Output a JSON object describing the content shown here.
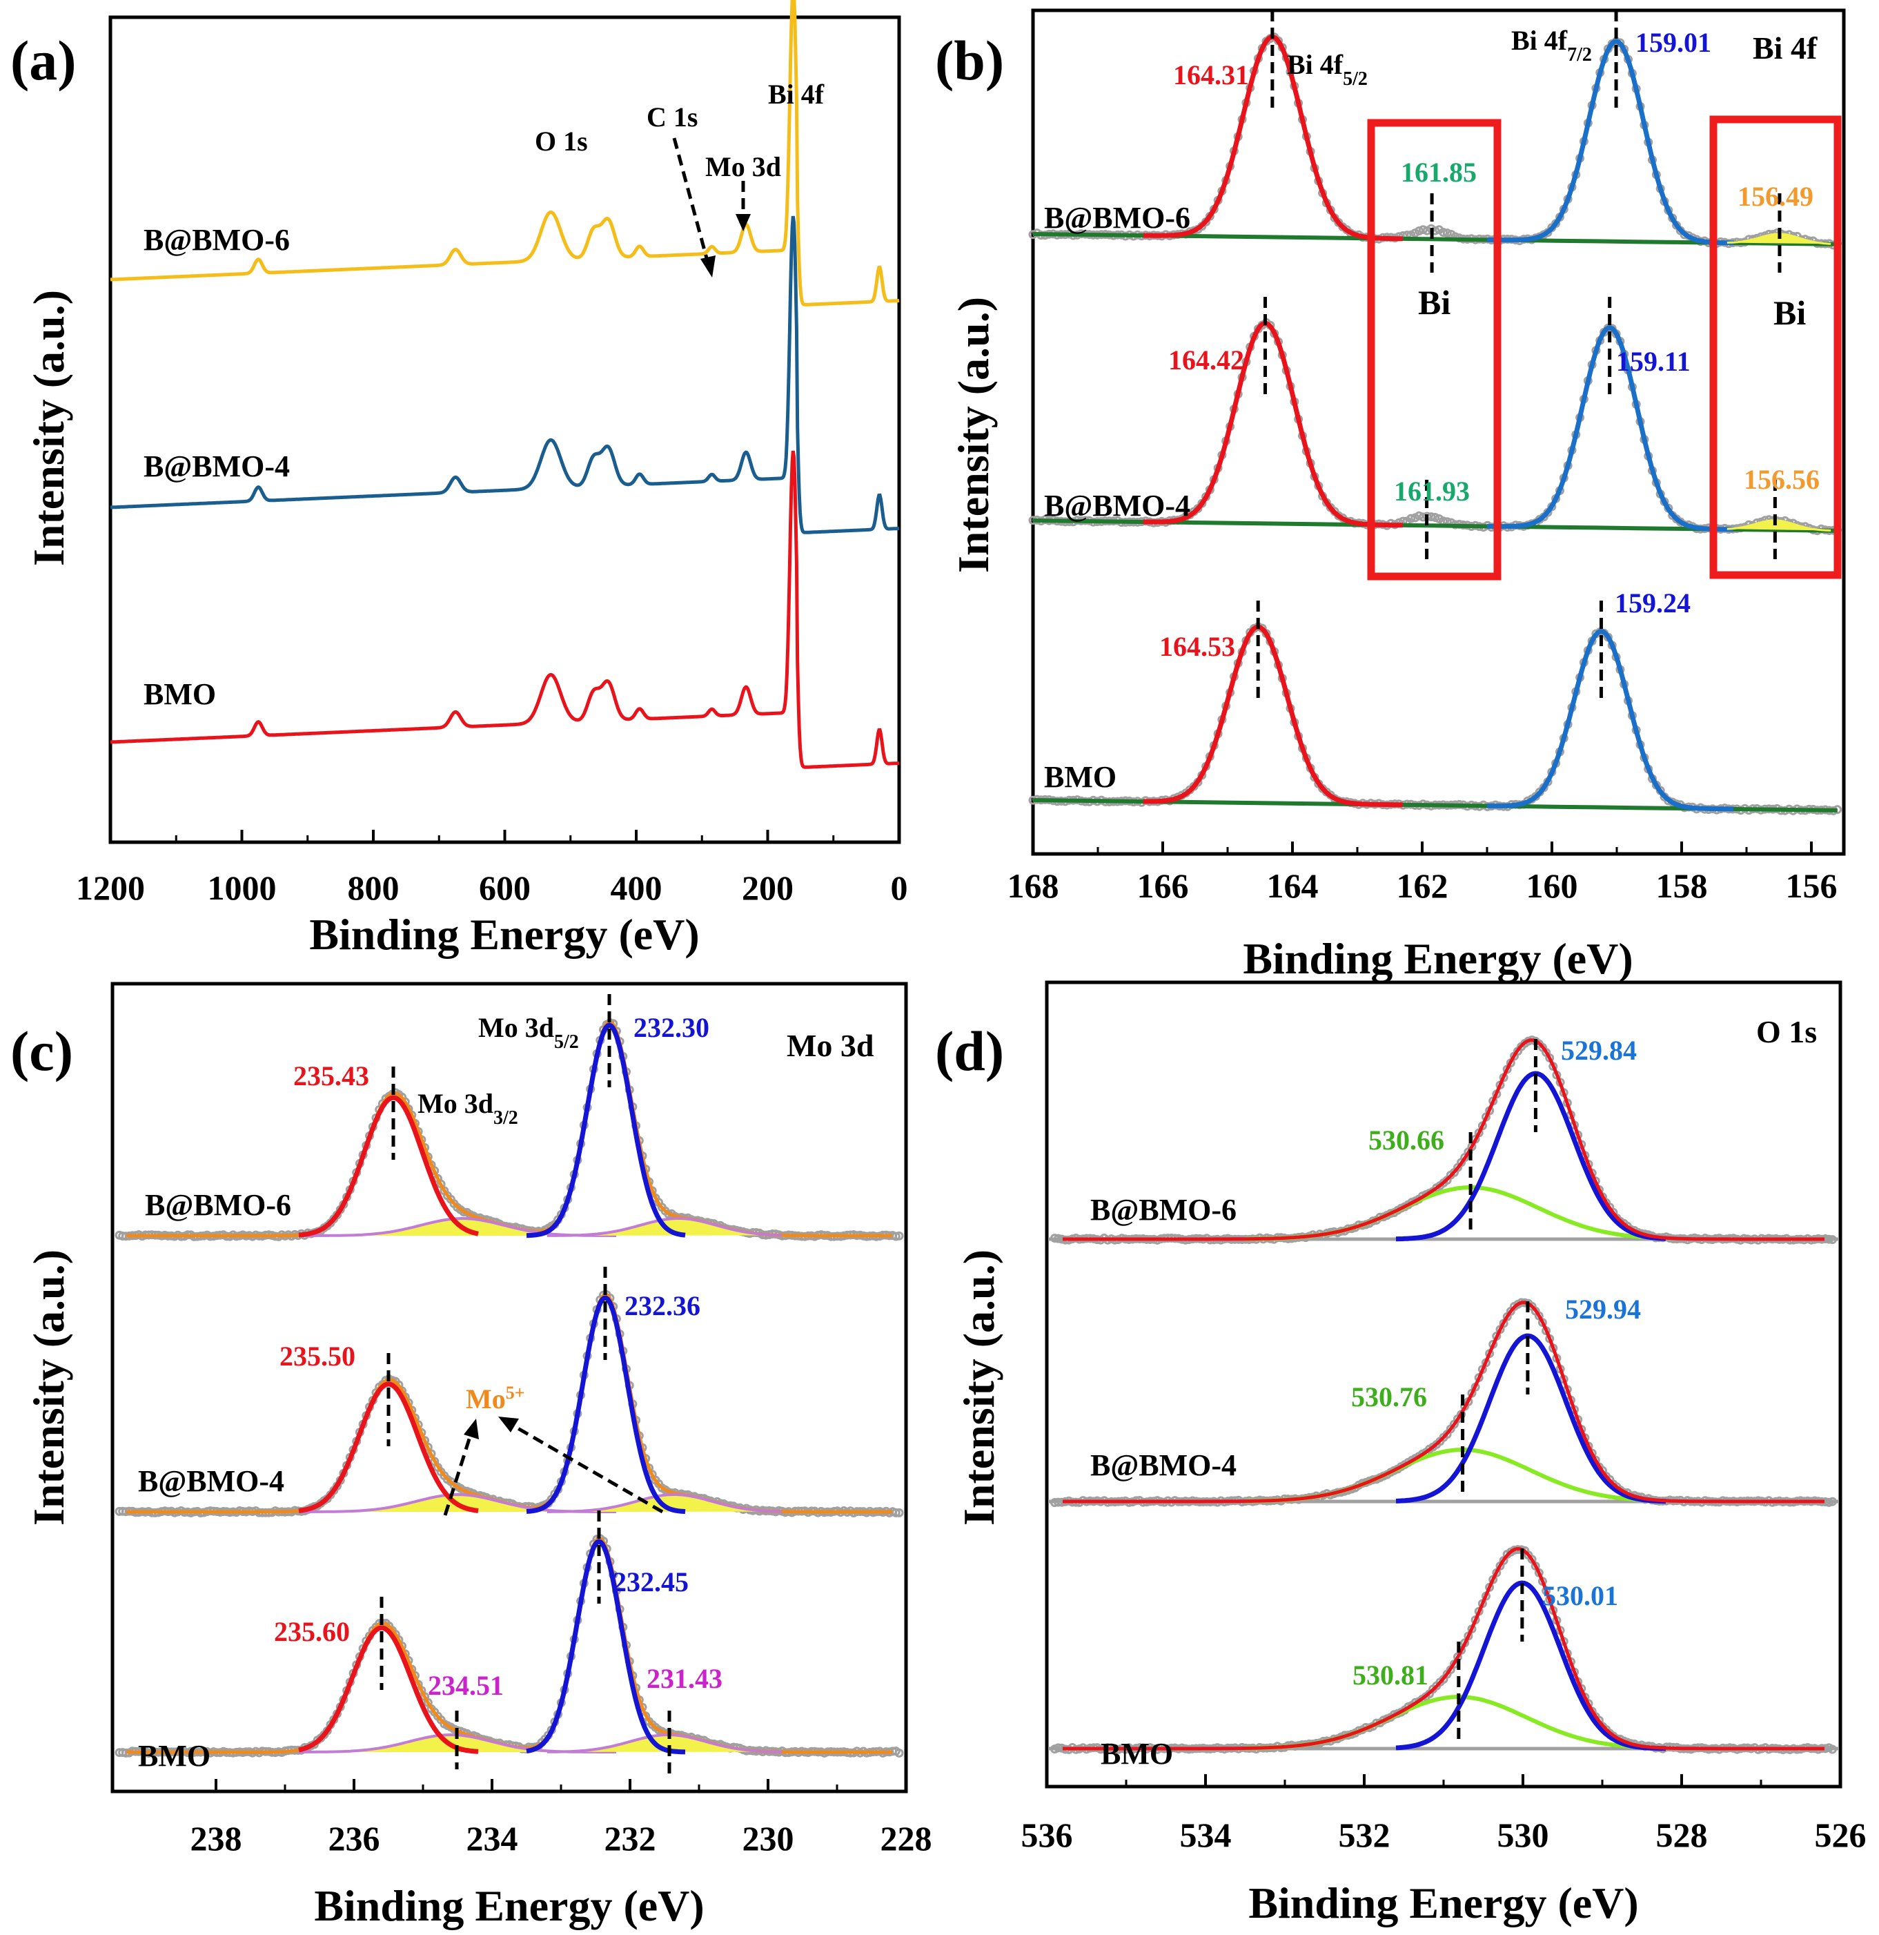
{
  "colors": {
    "bmo": "#e8131b",
    "b4": "#1a5d8f",
    "b6": "#f5bd19",
    "raw": "#a0a0a0",
    "bg": "#1f7a2e",
    "fit_red": "#e8131b",
    "fit_blue": "#1a6fc9",
    "fit_deepblue": "#1414d4",
    "green_text": "#17a86b",
    "orange_text": "#f39a2e",
    "magenta": "#cc22cc",
    "violet": "#c27bd6",
    "yellow_fill": "#f2f24a",
    "o_green": "#88ea22",
    "o_label_blue": "#1a74d8",
    "o_label_green": "#3fae1c",
    "box": "#ee1c1c",
    "mo5_orange": "#f08a1c"
  },
  "panels": {
    "a": {
      "letter": "(a)",
      "ylabel": "Intensity (a.u.)",
      "xlabel": "Binding Energy (eV)"
    },
    "b": {
      "letter": "(b)",
      "ylabel": "Intensity (a.u.)",
      "xlabel": "Binding Energy (eV)"
    },
    "c": {
      "letter": "(c)",
      "ylabel": "Intensity (a.u.)",
      "xlabel": "Binding Energy (eV)"
    },
    "d": {
      "letter": "(d)",
      "ylabel": "Intensity (a.u.)",
      "xlabel": "Binding Energy (eV)"
    }
  },
  "chart_data": [
    {
      "id": "a",
      "type": "line",
      "title": "",
      "xlabel": "Binding Energy (eV)",
      "ylabel": "Intensity (a.u.)",
      "xlim": [
        1200,
        0
      ],
      "xticks": [
        1200,
        1000,
        800,
        600,
        400,
        200,
        0
      ],
      "series": [
        {
          "name": "BMO",
          "color_key": "bmo"
        },
        {
          "name": "B@BMO-4",
          "color_key": "b4"
        },
        {
          "name": "B@BMO-6",
          "color_key": "b6"
        }
      ],
      "peaks_eV": [
        {
          "label": "O 1s",
          "x": 530
        },
        {
          "label": "C 1s",
          "x": 285
        },
        {
          "label": "Mo 3d",
          "x": 232
        },
        {
          "label": "Bi 4f",
          "x": 160
        }
      ]
    },
    {
      "id": "b",
      "type": "line",
      "title": "Bi 4f",
      "xlabel": "Binding Energy (eV)",
      "ylabel": "Intensity (a.u.)",
      "xlim": [
        168,
        155.5
      ],
      "xticks": [
        168,
        166,
        164,
        162,
        160,
        158,
        156
      ],
      "series": [
        {
          "name": "B@BMO-6",
          "peaks": [
            164.31,
            161.85,
            159.01,
            156.49
          ]
        },
        {
          "name": "B@BMO-4",
          "peaks": [
            164.42,
            161.93,
            159.11,
            156.56
          ]
        },
        {
          "name": "BMO",
          "peaks": [
            164.53,
            159.24
          ]
        }
      ],
      "peak_labels": {
        "b6_a": "164.31",
        "b6_b": "161.85",
        "b6_c": "159.01",
        "b6_d": "156.49",
        "b4_a": "164.42",
        "b4_b": "161.93",
        "b4_c": "159.11",
        "b4_d": "156.56",
        "bmo_a": "164.53",
        "bmo_c": "159.24"
      },
      "annotations": {
        "bi_a": "Bi",
        "bi_b": "Bi",
        "bi4f_52": "Bi 4f",
        "bi4f_52_sub": "5/2",
        "bi4f_72": "Bi 4f",
        "bi4f_72_sub": "7/2"
      }
    },
    {
      "id": "c",
      "type": "line",
      "title": "Mo 3d",
      "xlabel": "Binding Energy (eV)",
      "ylabel": "Intensity (a.u.)",
      "xlim": [
        239.5,
        228
      ],
      "xticks": [
        238,
        236,
        234,
        232,
        230,
        228
      ],
      "series": [
        {
          "name": "B@BMO-6",
          "peaks": [
            235.43,
            232.3
          ]
        },
        {
          "name": "B@BMO-4",
          "peaks": [
            235.5,
            232.36
          ]
        },
        {
          "name": "BMO",
          "peaks": [
            235.6,
            234.51,
            232.45,
            231.43
          ]
        }
      ],
      "peak_labels": {
        "b6_a": "235.43",
        "b6_b": "232.30",
        "b4_a": "235.50",
        "b4_b": "232.36",
        "bmo_a": "235.60",
        "bmo_b": "232.45",
        "bmo_c": "234.51",
        "bmo_d": "231.43"
      },
      "annotations": {
        "mo3d32": "Mo 3d",
        "mo3d32_sub": "3/2",
        "mo3d52": "Mo 3d",
        "mo3d52_sub": "5/2",
        "mo5": "Mo",
        "mo5_sup": "5+"
      }
    },
    {
      "id": "d",
      "type": "line",
      "title": "O 1s",
      "xlabel": "Binding Energy (eV)",
      "ylabel": "Intensity (a.u.)",
      "xlim": [
        536,
        526
      ],
      "xticks": [
        536,
        534,
        532,
        530,
        528,
        526
      ],
      "series": [
        {
          "name": "B@BMO-6",
          "peaks": [
            529.84,
            530.66
          ]
        },
        {
          "name": "B@BMO-4",
          "peaks": [
            529.94,
            530.76
          ]
        },
        {
          "name": "BMO",
          "peaks": [
            530.01,
            530.81
          ]
        }
      ],
      "peak_labels": {
        "b6_a": "529.84",
        "b6_b": "530.66",
        "b4_a": "529.94",
        "b4_b": "530.76",
        "bmo_a": "530.01",
        "bmo_b": "530.81"
      }
    }
  ]
}
